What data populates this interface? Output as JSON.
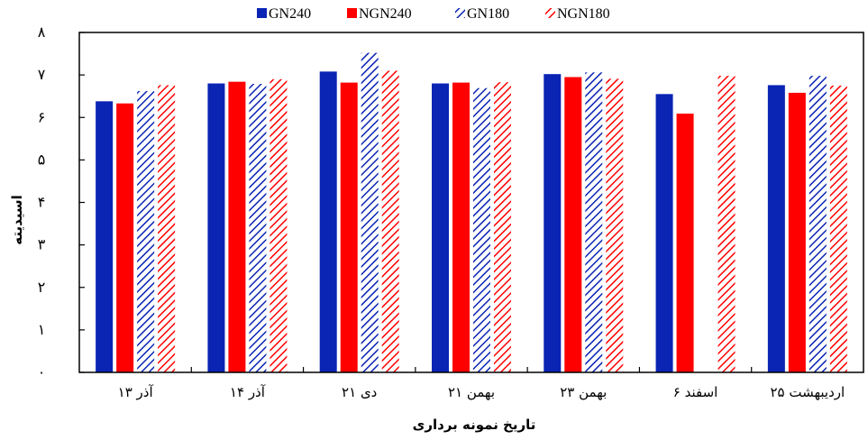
{
  "chart_data": {
    "type": "bar",
    "title": "",
    "xlabel": "تاریخ نمونه برداری",
    "ylabel": "اسیدیته",
    "ylim": [
      0,
      8
    ],
    "yticks": [
      "۰",
      "۱",
      "۲",
      "۳",
      "۴",
      "۵",
      "۶",
      "۷",
      "۸"
    ],
    "categories": [
      "۱۳ آذر",
      "۱۴ آذر",
      "۲۱ دی",
      "۲۱ بهمن",
      "۲۳ بهمن",
      "۶ اسفند",
      "۲۵ اردیبهشت"
    ],
    "series": [
      {
        "name": "GN240",
        "color": "#0a24b4",
        "pattern": "solid",
        "values": [
          6.38,
          6.8,
          7.08,
          6.8,
          7.02,
          6.55,
          6.76
        ]
      },
      {
        "name": "NGN240",
        "color": "#ff0000",
        "pattern": "solid",
        "values": [
          6.33,
          6.84,
          6.82,
          6.82,
          6.95,
          6.09,
          6.58
        ]
      },
      {
        "name": "GN180",
        "color": "#0a24b4",
        "pattern": "hatched",
        "values": [
          6.62,
          6.79,
          7.52,
          6.69,
          7.06,
          null,
          6.98
        ]
      },
      {
        "name": "NGN180",
        "color": "#ff0000",
        "pattern": "hatched",
        "values": [
          6.76,
          6.9,
          7.1,
          6.83,
          6.91,
          6.98,
          6.75
        ]
      }
    ],
    "legend_position": "top",
    "grid": false
  }
}
